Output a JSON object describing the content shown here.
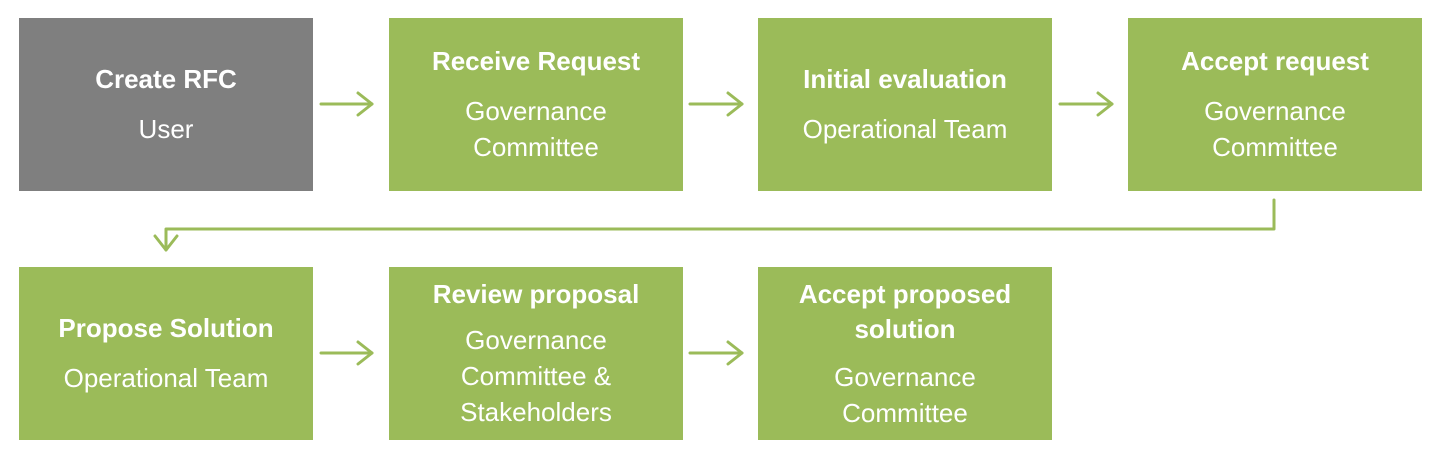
{
  "steps": [
    {
      "title": "Create RFC",
      "role": "User",
      "color": "#7f7f7f"
    },
    {
      "title": "Receive Request",
      "role": "Governance Committee",
      "color": "#9bbb59"
    },
    {
      "title": "Initial evaluation",
      "role": "Operational Team",
      "color": "#9bbb59"
    },
    {
      "title": "Accept request",
      "role": "Governance Committee",
      "color": "#9bbb59"
    },
    {
      "title": "Propose Solution",
      "role": "Operational Team",
      "color": "#9bbb59"
    },
    {
      "title": "Review proposal",
      "role": "Governance Committee & Stakeholders",
      "color": "#9bbb59"
    },
    {
      "title": "Accept proposed solution",
      "role": "Governance Committee",
      "color": "#9bbb59"
    }
  ],
  "colors": {
    "step_fill": "#9bbb59",
    "start_fill": "#7f7f7f",
    "connector": "#9bbb59",
    "text": "#ffffff"
  }
}
